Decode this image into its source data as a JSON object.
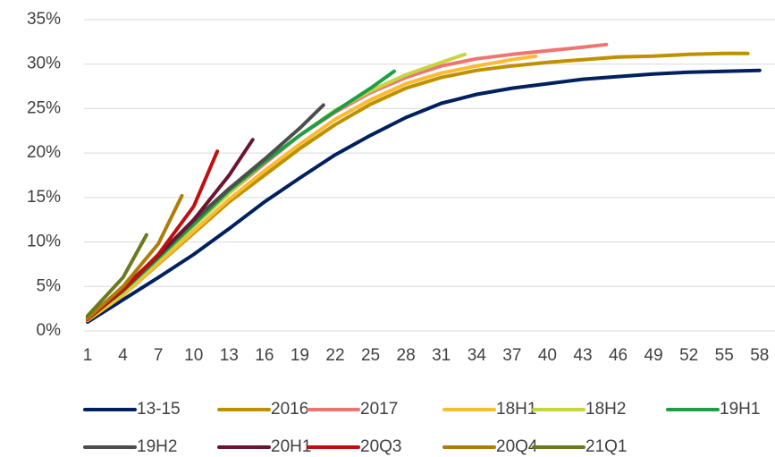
{
  "chart_data": {
    "type": "line",
    "xlim": [
      1,
      59
    ],
    "xticks": [
      1,
      4,
      7,
      10,
      13,
      16,
      19,
      22,
      25,
      28,
      31,
      34,
      37,
      40,
      43,
      46,
      49,
      52,
      55,
      58
    ],
    "ylim": [
      0,
      35
    ],
    "yticks": [
      {
        "value": 0,
        "label": "0%"
      },
      {
        "value": 5,
        "label": "5%"
      },
      {
        "value": 10,
        "label": "10%"
      },
      {
        "value": 15,
        "label": "15%"
      },
      {
        "value": 20,
        "label": "20%"
      },
      {
        "value": 25,
        "label": "25%"
      },
      {
        "value": 30,
        "label": "30%"
      },
      {
        "value": 35,
        "label": "35%"
      }
    ],
    "grid": true,
    "series": [
      {
        "name": "13-15",
        "color": "#002060",
        "x": [
          1,
          4,
          7,
          10,
          13,
          16,
          19,
          22,
          25,
          28,
          31,
          34,
          37,
          40,
          43,
          46,
          49,
          52,
          55,
          58
        ],
        "values": [
          1,
          3.5,
          6,
          8.6,
          11.5,
          14.5,
          17.2,
          19.8,
          22,
          24,
          25.6,
          26.6,
          27.3,
          27.8,
          28.3,
          28.6,
          28.9,
          29.1,
          29.2,
          29.3
        ]
      },
      {
        "name": "2016",
        "color": "#BF9000",
        "x": [
          1,
          4,
          7,
          10,
          13,
          16,
          19,
          22,
          25,
          28,
          31,
          34,
          37,
          40,
          43,
          46,
          49,
          52,
          55,
          57
        ],
        "values": [
          1.2,
          4,
          7.5,
          11,
          14.5,
          17.5,
          20.5,
          23.2,
          25.5,
          27.3,
          28.5,
          29.3,
          29.8,
          30.2,
          30.5,
          30.8,
          30.9,
          31.1,
          31.2,
          31.2
        ]
      },
      {
        "name": "2017",
        "color": "#F07470",
        "x": [
          1,
          4,
          7,
          10,
          13,
          16,
          19,
          22,
          25,
          28,
          31,
          34,
          37,
          40,
          43,
          45
        ],
        "values": [
          1.3,
          4.3,
          8,
          11.8,
          15.5,
          18.8,
          22,
          24.6,
          26.8,
          28.5,
          29.8,
          30.6,
          31.1,
          31.5,
          31.9,
          32.2
        ]
      },
      {
        "name": "18H1",
        "color": "#FBBB33",
        "x": [
          1,
          4,
          7,
          10,
          13,
          16,
          19,
          22,
          25,
          28,
          31,
          34,
          37,
          39
        ],
        "values": [
          1.2,
          4,
          7.6,
          11.2,
          14.8,
          18,
          21,
          23.8,
          26,
          27.8,
          29,
          29.8,
          30.5,
          30.9
        ]
      },
      {
        "name": "18H2",
        "color": "#C5D63F",
        "x": [
          1,
          4,
          7,
          10,
          13,
          16,
          19,
          22,
          25,
          28,
          31,
          33
        ],
        "values": [
          1.3,
          4.3,
          8,
          11.8,
          15.5,
          19,
          22,
          24.8,
          27,
          28.8,
          30.2,
          31.1
        ]
      },
      {
        "name": "19H1",
        "color": "#1E9E45",
        "x": [
          1,
          4,
          7,
          10,
          13,
          16,
          19,
          22,
          25,
          27
        ],
        "values": [
          1.4,
          4.5,
          8.2,
          12,
          15.8,
          19,
          22,
          24.7,
          27.3,
          29.2
        ]
      },
      {
        "name": "19H2",
        "color": "#4D4D4D",
        "x": [
          1,
          4,
          7,
          10,
          13,
          16,
          19,
          21
        ],
        "values": [
          1.5,
          4.6,
          8.4,
          12.4,
          16,
          19.3,
          22.8,
          25.4
        ]
      },
      {
        "name": "20H1",
        "color": "#6B1530",
        "x": [
          1,
          4,
          7,
          10,
          13,
          15
        ],
        "values": [
          1.5,
          4.8,
          8.5,
          12.5,
          17.5,
          21.5
        ]
      },
      {
        "name": "20Q3",
        "color": "#C00F0F",
        "x": [
          1,
          4,
          7,
          10,
          12
        ],
        "values": [
          1.3,
          4.6,
          8.6,
          14,
          20.2
        ]
      },
      {
        "name": "20Q4",
        "color": "#AE7D05",
        "x": [
          1,
          4,
          7,
          9
        ],
        "values": [
          1.4,
          5,
          9.8,
          15.2
        ]
      },
      {
        "name": "21Q1",
        "color": "#6B7A1E",
        "x": [
          1,
          4,
          6
        ],
        "values": [
          1.7,
          6,
          10.8
        ]
      }
    ]
  }
}
